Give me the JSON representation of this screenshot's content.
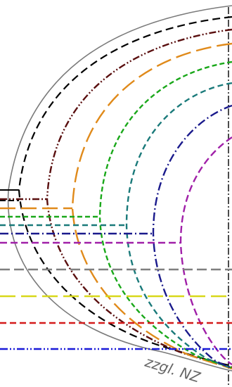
{
  "labels": {
    "nz_label": "zzgl. NZ"
  },
  "colors": {
    "background": "#ffffff",
    "outer_boundary": "#7a7a7a",
    "black": "#000000",
    "darkred": "#5a0f0f",
    "orange": "#e08a1a",
    "green": "#1aa81a",
    "teal": "#1a7a7a",
    "navy": "#1a1a8c",
    "magenta": "#a020a8",
    "gray": "#7f7f7f",
    "yellow": "#d8d81a",
    "red": "#d41a1a",
    "blue": "#1a1ad8"
  },
  "line_styles": [
    "solid",
    "dashed",
    "dash-dot-dot",
    "long-dash",
    "short-dash",
    "dash-dot"
  ]
}
